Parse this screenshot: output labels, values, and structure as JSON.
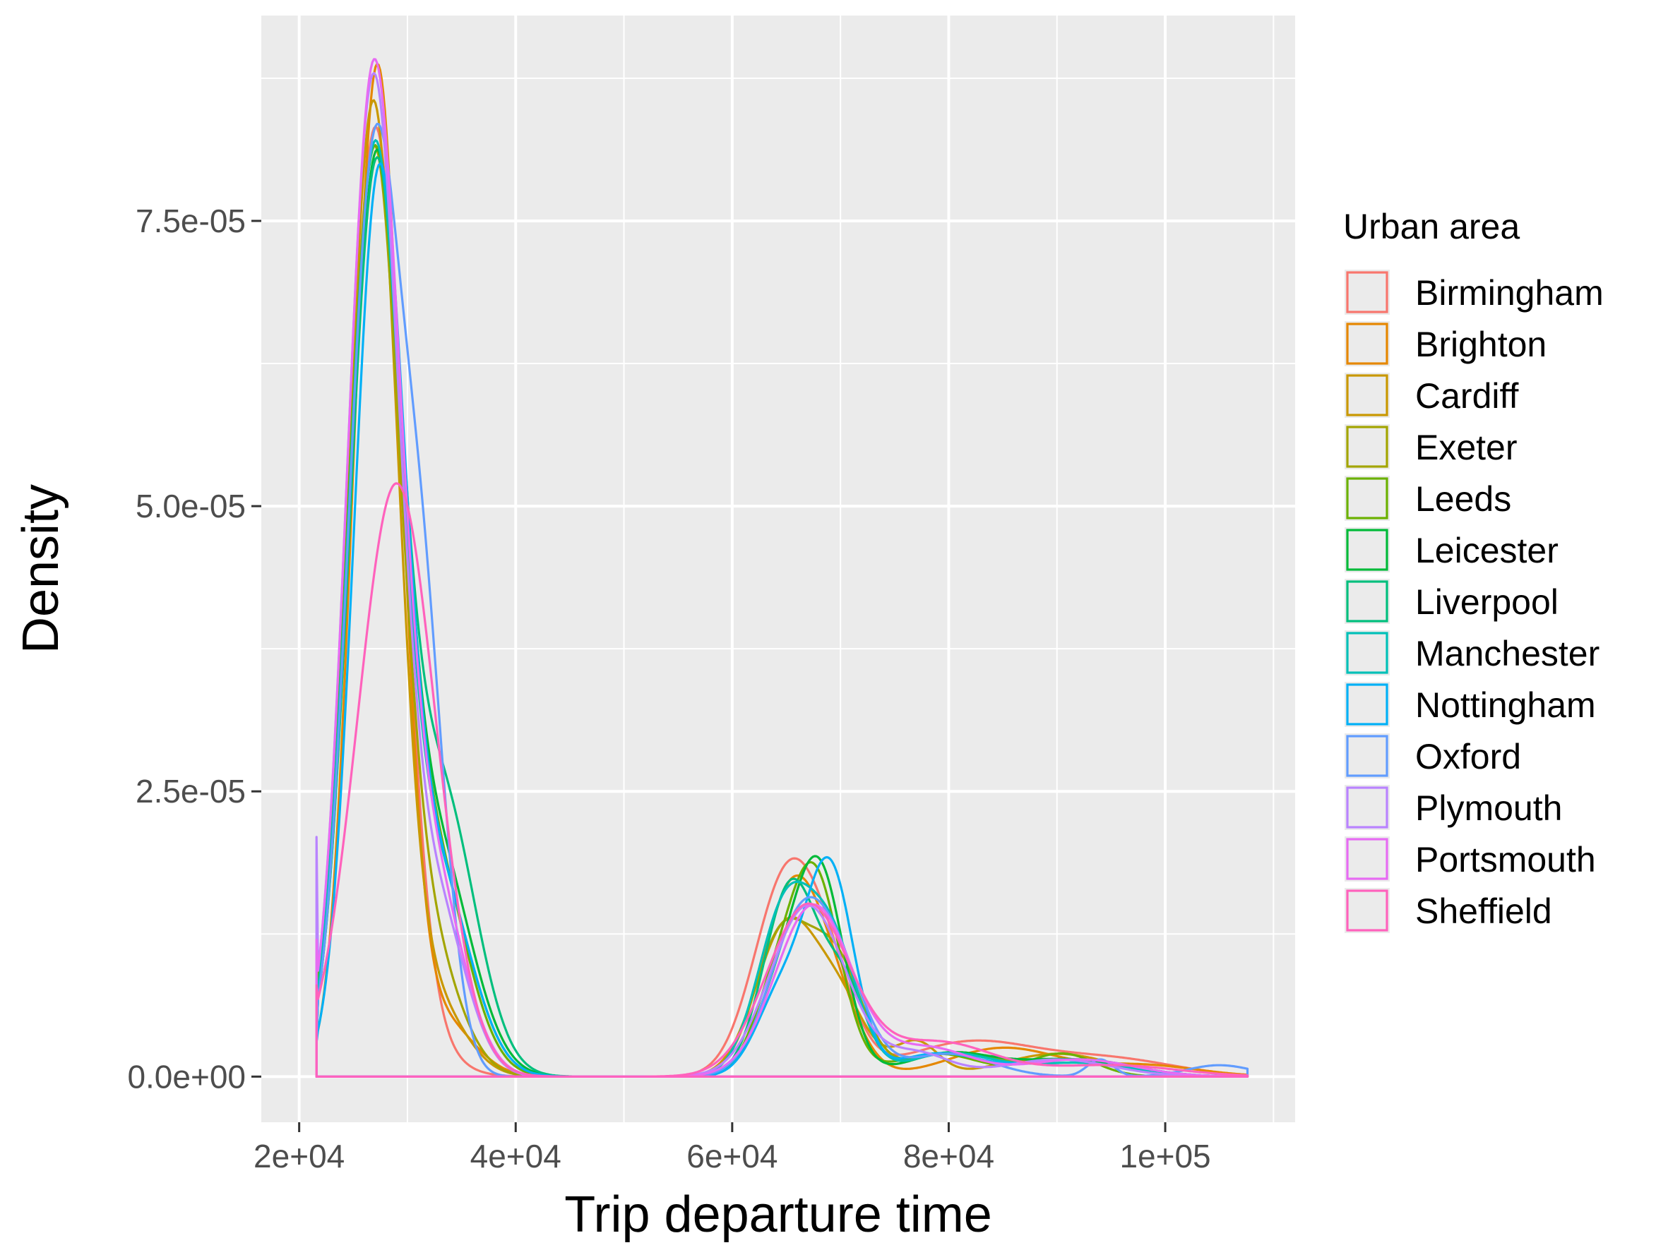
{
  "chart_data": {
    "type": "line",
    "title": "",
    "xlabel": "Trip departure time",
    "ylabel": "Density",
    "xlim": [
      16500,
      112000
    ],
    "ylim": [
      -4e-06,
      9.3e-05
    ],
    "x_ticks": [
      20000,
      40000,
      60000,
      80000,
      100000
    ],
    "x_tick_labels": [
      "2e+04",
      "4e+04",
      "6e+04",
      "8e+04",
      "1e+05"
    ],
    "y_ticks": [
      0,
      2.5e-05,
      5e-05,
      7.5e-05
    ],
    "y_tick_labels": [
      "0.0e+00",
      "2.5e-05",
      "5.0e-05",
      "7.5e-05"
    ],
    "grid": true,
    "legend": {
      "title": "Urban area",
      "position": "right"
    },
    "x_range": [
      21600,
      107600
    ],
    "series": [
      {
        "name": "Birmingham",
        "color": "#F8766D",
        "start_y": 3e-06,
        "peaks": [
          [
            27000,
            7.9e-05,
            2500
          ],
          [
            29000,
            5e-06,
            3500
          ],
          [
            65000,
            1.7e-05,
            3000
          ],
          [
            69000,
            6e-06,
            2500
          ],
          [
            82000,
            3e-06,
            6000
          ],
          [
            95000,
            1.5e-06,
            6000
          ]
        ]
      },
      {
        "name": "Brighton",
        "color": "#E58700",
        "start_y": 4e-06,
        "peaks": [
          [
            27200,
            8.8e-05,
            2200
          ],
          [
            33000,
            5e-06,
            3000
          ],
          [
            65500,
            1.6e-05,
            2800
          ],
          [
            69500,
            5e-06,
            2500
          ],
          [
            85000,
            2.5e-06,
            5000
          ],
          [
            98000,
            1e-06,
            5000
          ]
        ]
      },
      {
        "name": "Cardiff",
        "color": "#C99800",
        "start_y": 3e-06,
        "peaks": [
          [
            26800,
            8.4e-05,
            2300
          ],
          [
            32000,
            7e-06,
            3000
          ],
          [
            65000,
            1.3e-05,
            2800
          ],
          [
            70000,
            6e-06,
            2500
          ],
          [
            77000,
            3e-06,
            2000
          ],
          [
            90000,
            2e-06,
            5000
          ]
        ]
      },
      {
        "name": "Exeter",
        "color": "#A3A500",
        "start_y": 3e-06,
        "peaks": [
          [
            26800,
            7.8e-05,
            2400
          ],
          [
            31500,
            1.2e-05,
            3000
          ],
          [
            64500,
            1.2e-05,
            2500
          ],
          [
            69500,
            1e-05,
            2500
          ],
          [
            80000,
            2e-06,
            4000
          ],
          [
            92000,
            1.5e-06,
            5000
          ]
        ]
      },
      {
        "name": "Leeds",
        "color": "#6BB100",
        "start_y": 3e-06,
        "peaks": [
          [
            26800,
            7.6e-05,
            2400
          ],
          [
            32000,
            2e-05,
            3200
          ],
          [
            67500,
            1.8e-05,
            2400
          ],
          [
            63500,
            5e-06,
            2000
          ],
          [
            79000,
            2e-06,
            4000
          ],
          [
            90500,
            2e-06,
            3000
          ]
        ]
      },
      {
        "name": "Leicester",
        "color": "#00BA38",
        "start_y": 3e-06,
        "peaks": [
          [
            27000,
            7.6e-05,
            2400
          ],
          [
            32500,
            2e-05,
            3300
          ],
          [
            68000,
            1.8e-05,
            2300
          ],
          [
            64000,
            6e-06,
            2200
          ],
          [
            80000,
            2e-06,
            4000
          ],
          [
            91000,
            1.5e-06,
            5000
          ]
        ]
      },
      {
        "name": "Liverpool",
        "color": "#00BF7D",
        "start_y": 3e-06,
        "peaks": [
          [
            27000,
            7.6e-05,
            2400
          ],
          [
            33000,
            2.5e-05,
            3200
          ],
          [
            65500,
            1.7e-05,
            2500
          ],
          [
            70500,
            7e-06,
            2000
          ],
          [
            80000,
            2e-06,
            4000
          ],
          [
            92000,
            1.2e-06,
            5000
          ]
        ]
      },
      {
        "name": "Manchester",
        "color": "#00C0B8",
        "start_y": 3e-06,
        "peaks": [
          [
            26900,
            7.8e-05,
            2400
          ],
          [
            32500,
            1.8e-05,
            3200
          ],
          [
            65000,
            1.5e-05,
            2600
          ],
          [
            69500,
            1e-05,
            2300
          ],
          [
            80000,
            2e-06,
            4000
          ],
          [
            92000,
            1.2e-06,
            5000
          ]
        ]
      },
      {
        "name": "Nottingham",
        "color": "#00B0F6",
        "start_y": 3e-06,
        "peaks": [
          [
            27300,
            7.5e-05,
            2300
          ],
          [
            32500,
            1.8e-05,
            3200
          ],
          [
            69000,
            1.8e-05,
            2200
          ],
          [
            64500,
            7e-06,
            2300
          ],
          [
            79000,
            2e-06,
            4000
          ],
          [
            92000,
            1.5e-06,
            5000
          ]
        ]
      },
      {
        "name": "Oxford",
        "color": "#619CFF",
        "start_y": 3e-06,
        "peaks": [
          [
            26800,
            7.7e-05,
            2300
          ],
          [
            31200,
            4e-05,
            2200
          ],
          [
            66500,
            1.4e-05,
            3000
          ],
          [
            70500,
            5e-06,
            2500
          ],
          [
            80000,
            2e-06,
            4000
          ],
          [
            94000,
            1.5e-06,
            1200
          ],
          [
            105000,
            1e-06,
            3000
          ]
        ]
      },
      {
        "name": "Plymouth",
        "color": "#B983FF",
        "start_y": 2.1e-05,
        "peaks": [
          [
            26800,
            8.6e-05,
            2400
          ],
          [
            32500,
            1.5e-05,
            2800
          ],
          [
            67000,
            1.5e-05,
            3500
          ],
          [
            77000,
            2e-06,
            3000
          ],
          [
            90000,
            1.5e-06,
            5000
          ]
        ]
      },
      {
        "name": "Portsmouth",
        "color": "#E76BF3",
        "start_y": 1.2e-05,
        "peaks": [
          [
            26800,
            8.5e-05,
            2400
          ],
          [
            32000,
            1.8e-05,
            3000
          ],
          [
            67500,
            1.5e-05,
            3500
          ],
          [
            78000,
            2.5e-06,
            4000
          ],
          [
            92000,
            1.5e-06,
            5000
          ]
        ]
      },
      {
        "name": "Sheffield",
        "color": "#FF62BC",
        "start_y": 8e-06,
        "peaks": [
          [
            29000,
            5.2e-05,
            3600
          ],
          [
            67000,
            1.5e-05,
            3800
          ],
          [
            79000,
            3e-06,
            5000
          ],
          [
            95000,
            1e-06,
            6000
          ]
        ]
      }
    ]
  }
}
